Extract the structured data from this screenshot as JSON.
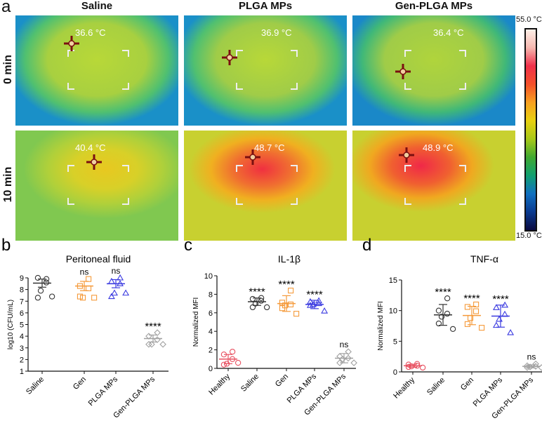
{
  "panel_a": {
    "label": "a",
    "columns": [
      "Saline",
      "PLGA MPs",
      "Gen-PLGA MPs"
    ],
    "rows": [
      "0 min",
      "10 min"
    ],
    "temperatures": [
      [
        "36.6 °C",
        "36.9 °C",
        "36.4 °C"
      ],
      [
        "40.4 °C",
        "48.7 °C",
        "48.9 °C"
      ]
    ],
    "colorbar": {
      "max": "55.0 °C",
      "min": "15.0 °C"
    }
  },
  "chart_data": [
    {
      "panel": "b",
      "type": "scatter",
      "title": "Peritoneal fluid",
      "ylabel": "log10 (CFU/mL)",
      "ylim": [
        1,
        9
      ],
      "yticks": [
        1,
        2,
        3,
        4,
        5,
        6,
        7,
        8,
        9
      ],
      "categories": [
        "Saline",
        "Gen",
        "PLGA MPs",
        "Gen-PLGA MPs"
      ],
      "colors": [
        "#333333",
        "#f59a3a",
        "#3a3ae0",
        "#a0a0a0"
      ],
      "markers": [
        "circle",
        "square",
        "triangle",
        "diamond"
      ],
      "values": [
        [
          8.9,
          9.0,
          8.6,
          7.9,
          7.3,
          7.4
        ],
        [
          8.9,
          8.3,
          8.1,
          7.3,
          7.4,
          7.3
        ],
        [
          9.0,
          8.7,
          8.5,
          7.7,
          7.4,
          7.7
        ],
        [
          4.3,
          4.0,
          3.7,
          3.3,
          3.3,
          3.3
        ]
      ],
      "mean": [
        8.55,
        8.3,
        8.5,
        3.8
      ],
      "err": [
        0.35,
        0.4,
        0.35,
        0.3
      ],
      "annotations": [
        "",
        "ns",
        "ns",
        "****"
      ]
    },
    {
      "panel": "c",
      "type": "scatter",
      "title": "IL-1β",
      "ylabel": "Normalized MFI",
      "ylim": [
        0,
        10
      ],
      "yticks": [
        0,
        2,
        4,
        6,
        8,
        10
      ],
      "categories": [
        "Healthy",
        "Saline",
        "Gen",
        "PLGA MPs",
        "Gen-PLGA MPs"
      ],
      "colors": [
        "#e85060",
        "#333333",
        "#f59a3a",
        "#3a3ae0",
        "#a0a0a0"
      ],
      "markers": [
        "circle",
        "circle",
        "square",
        "triangle",
        "diamond"
      ],
      "values": [
        [
          1.8,
          1.5,
          1.0,
          0.5,
          0.4,
          0.6
        ],
        [
          7.6,
          7.5,
          7.3,
          7.0,
          6.6,
          6.6
        ],
        [
          8.4,
          7.1,
          6.9,
          6.8,
          6.5,
          5.9
        ],
        [
          7.3,
          7.2,
          7.0,
          6.9,
          6.8,
          6.2
        ],
        [
          1.8,
          1.3,
          1.1,
          1.0,
          0.6,
          0.6
        ]
      ],
      "mean": [
        1.0,
        7.2,
        7.0,
        6.9,
        1.1
      ],
      "err": [
        0.5,
        0.4,
        0.85,
        0.45,
        0.5
      ],
      "annotations": [
        "",
        "****",
        "****",
        "****",
        "ns"
      ]
    },
    {
      "panel": "d",
      "type": "scatter",
      "title": "TNF-α",
      "ylabel": "Normalized MFI",
      "ylim": [
        0,
        15
      ],
      "yticks": [
        0,
        5,
        10,
        15
      ],
      "categories": [
        "Healthy",
        "Saline",
        "Gen",
        "PLGA MPs",
        "Gen-PLGA MPs"
      ],
      "colors": [
        "#e85060",
        "#333333",
        "#f59a3a",
        "#3a3ae0",
        "#a0a0a0"
      ],
      "markers": [
        "circle",
        "circle",
        "square",
        "triangle",
        "diamond"
      ],
      "values": [
        [
          1.3,
          1.2,
          1.0,
          0.9,
          0.8,
          0.7
        ],
        [
          12.0,
          10.0,
          9.5,
          9.0,
          7.9,
          7.0
        ],
        [
          11.0,
          10.6,
          9.9,
          8.8,
          7.8,
          7.2
        ],
        [
          10.9,
          10.5,
          9.4,
          8.6,
          7.6,
          6.4
        ],
        [
          1.3,
          1.0,
          0.9,
          0.8,
          0.7,
          0.7
        ]
      ],
      "mean": [
        1.0,
        9.3,
        9.2,
        9.1,
        0.9
      ],
      "err": [
        0.25,
        1.7,
        1.5,
        1.8,
        0.25
      ],
      "annotations": [
        "",
        "****",
        "****",
        "****",
        "ns"
      ]
    }
  ]
}
